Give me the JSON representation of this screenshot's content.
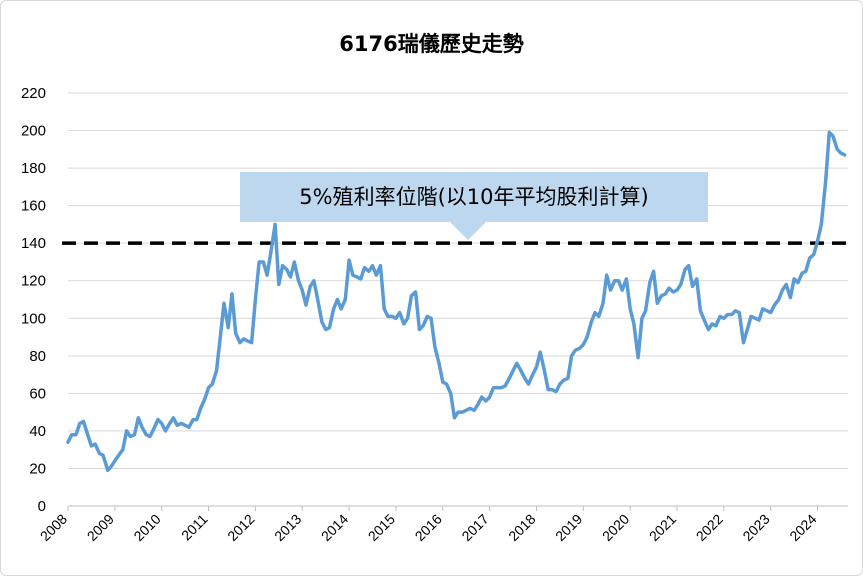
{
  "chart_data": {
    "type": "line",
    "title": "6176瑞儀歷史走勢",
    "xlabel": "",
    "ylabel": "",
    "ylim": [
      0,
      220
    ],
    "yticks": [
      0,
      20,
      40,
      60,
      80,
      100,
      120,
      140,
      160,
      180,
      200,
      220
    ],
    "xlim": [
      2008,
      2024.65
    ],
    "xticks": [
      "2008",
      "2009",
      "2010",
      "2011",
      "2012",
      "2013",
      "2014",
      "2015",
      "2016",
      "2017",
      "2018",
      "2019",
      "2020",
      "2021",
      "2022",
      "2023",
      "2024"
    ],
    "grid": true,
    "series_color": "#5b9bd5",
    "reference_line": {
      "value": 140,
      "style": "dashed",
      "color": "#000000"
    },
    "annotation": "5%殖利率位階(以10年平均股利計算)",
    "annotation_color": "#bdd7ee",
    "series": [
      {
        "points": [
          [
            2008.0,
            34
          ],
          [
            2008.08,
            38
          ],
          [
            2008.17,
            38
          ],
          [
            2008.25,
            44
          ],
          [
            2008.33,
            45
          ],
          [
            2008.42,
            38
          ],
          [
            2008.5,
            32
          ],
          [
            2008.58,
            33
          ],
          [
            2008.67,
            28
          ],
          [
            2008.75,
            27
          ],
          [
            2008.85,
            19
          ],
          [
            2008.92,
            21
          ],
          [
            2009.0,
            24
          ],
          [
            2009.08,
            27
          ],
          [
            2009.17,
            30
          ],
          [
            2009.25,
            40
          ],
          [
            2009.33,
            37
          ],
          [
            2009.42,
            38
          ],
          [
            2009.5,
            47
          ],
          [
            2009.58,
            42
          ],
          [
            2009.67,
            38
          ],
          [
            2009.75,
            37
          ],
          [
            2009.83,
            41
          ],
          [
            2009.92,
            46
          ],
          [
            2010.0,
            44
          ],
          [
            2010.08,
            40
          ],
          [
            2010.17,
            44
          ],
          [
            2010.25,
            47
          ],
          [
            2010.33,
            43
          ],
          [
            2010.42,
            44
          ],
          [
            2010.5,
            43
          ],
          [
            2010.58,
            42
          ],
          [
            2010.67,
            46
          ],
          [
            2010.75,
            46
          ],
          [
            2010.83,
            52
          ],
          [
            2010.92,
            57
          ],
          [
            2011.0,
            63
          ],
          [
            2011.08,
            65
          ],
          [
            2011.17,
            72
          ],
          [
            2011.25,
            90
          ],
          [
            2011.33,
            108
          ],
          [
            2011.42,
            95
          ],
          [
            2011.5,
            113
          ],
          [
            2011.58,
            92
          ],
          [
            2011.67,
            87
          ],
          [
            2011.75,
            89
          ],
          [
            2011.83,
            88
          ],
          [
            2011.92,
            87
          ],
          [
            2012.0,
            110
          ],
          [
            2012.08,
            130
          ],
          [
            2012.17,
            130
          ],
          [
            2012.25,
            123
          ],
          [
            2012.33,
            135
          ],
          [
            2012.42,
            150
          ],
          [
            2012.5,
            118
          ],
          [
            2012.58,
            128
          ],
          [
            2012.67,
            126
          ],
          [
            2012.75,
            122
          ],
          [
            2012.83,
            130
          ],
          [
            2012.92,
            120
          ],
          [
            2013.0,
            115
          ],
          [
            2013.08,
            107
          ],
          [
            2013.17,
            117
          ],
          [
            2013.25,
            120
          ],
          [
            2013.33,
            110
          ],
          [
            2013.42,
            98
          ],
          [
            2013.5,
            94
          ],
          [
            2013.58,
            95
          ],
          [
            2013.67,
            105
          ],
          [
            2013.75,
            110
          ],
          [
            2013.83,
            105
          ],
          [
            2013.92,
            110
          ],
          [
            2014.0,
            131
          ],
          [
            2014.08,
            123
          ],
          [
            2014.17,
            122
          ],
          [
            2014.25,
            121
          ],
          [
            2014.33,
            127
          ],
          [
            2014.42,
            125
          ],
          [
            2014.5,
            128
          ],
          [
            2014.58,
            123
          ],
          [
            2014.67,
            128
          ],
          [
            2014.75,
            105
          ],
          [
            2014.83,
            101
          ],
          [
            2014.92,
            101
          ],
          [
            2015.0,
            100
          ],
          [
            2015.08,
            103
          ],
          [
            2015.17,
            97
          ],
          [
            2015.25,
            100
          ],
          [
            2015.33,
            112
          ],
          [
            2015.42,
            114
          ],
          [
            2015.5,
            94
          ],
          [
            2015.58,
            96
          ],
          [
            2015.67,
            101
          ],
          [
            2015.75,
            100
          ],
          [
            2015.83,
            85
          ],
          [
            2015.92,
            76
          ],
          [
            2016.0,
            66
          ],
          [
            2016.08,
            65
          ],
          [
            2016.17,
            60
          ],
          [
            2016.25,
            47
          ],
          [
            2016.33,
            50
          ],
          [
            2016.42,
            50
          ],
          [
            2016.5,
            51
          ],
          [
            2016.58,
            52
          ],
          [
            2016.67,
            51
          ],
          [
            2016.75,
            54
          ],
          [
            2016.83,
            58
          ],
          [
            2016.92,
            56
          ],
          [
            2017.0,
            58
          ],
          [
            2017.08,
            63
          ],
          [
            2017.17,
            63
          ],
          [
            2017.25,
            63
          ],
          [
            2017.33,
            64
          ],
          [
            2017.42,
            68
          ],
          [
            2017.5,
            72
          ],
          [
            2017.58,
            76
          ],
          [
            2017.67,
            72
          ],
          [
            2017.75,
            68
          ],
          [
            2017.83,
            65
          ],
          [
            2017.92,
            70
          ],
          [
            2018.0,
            74
          ],
          [
            2018.08,
            82
          ],
          [
            2018.17,
            72
          ],
          [
            2018.25,
            62
          ],
          [
            2018.33,
            62
          ],
          [
            2018.42,
            61
          ],
          [
            2018.5,
            65
          ],
          [
            2018.58,
            67
          ],
          [
            2018.67,
            68
          ],
          [
            2018.75,
            80
          ],
          [
            2018.83,
            83
          ],
          [
            2018.92,
            84
          ],
          [
            2019.0,
            86
          ],
          [
            2019.08,
            90
          ],
          [
            2019.17,
            98
          ],
          [
            2019.25,
            103
          ],
          [
            2019.33,
            101
          ],
          [
            2019.42,
            108
          ],
          [
            2019.5,
            123
          ],
          [
            2019.58,
            115
          ],
          [
            2019.67,
            120
          ],
          [
            2019.75,
            120
          ],
          [
            2019.83,
            115
          ],
          [
            2019.92,
            121
          ],
          [
            2020.0,
            105
          ],
          [
            2020.08,
            97
          ],
          [
            2020.17,
            79
          ],
          [
            2020.25,
            100
          ],
          [
            2020.33,
            104
          ],
          [
            2020.42,
            119
          ],
          [
            2020.5,
            125
          ],
          [
            2020.58,
            108
          ],
          [
            2020.67,
            112
          ],
          [
            2020.75,
            113
          ],
          [
            2020.83,
            116
          ],
          [
            2020.92,
            114
          ],
          [
            2021.0,
            115
          ],
          [
            2021.08,
            118
          ],
          [
            2021.17,
            126
          ],
          [
            2021.25,
            128
          ],
          [
            2021.33,
            117
          ],
          [
            2021.42,
            121
          ],
          [
            2021.5,
            104
          ],
          [
            2021.58,
            99
          ],
          [
            2021.67,
            94
          ],
          [
            2021.75,
            97
          ],
          [
            2021.83,
            96
          ],
          [
            2021.92,
            101
          ],
          [
            2022.0,
            100
          ],
          [
            2022.08,
            102
          ],
          [
            2022.17,
            102
          ],
          [
            2022.25,
            104
          ],
          [
            2022.33,
            103
          ],
          [
            2022.42,
            87
          ],
          [
            2022.5,
            94
          ],
          [
            2022.58,
            101
          ],
          [
            2022.67,
            100
          ],
          [
            2022.75,
            99
          ],
          [
            2022.83,
            105
          ],
          [
            2022.92,
            104
          ],
          [
            2023.0,
            103
          ],
          [
            2023.08,
            107
          ],
          [
            2023.17,
            110
          ],
          [
            2023.25,
            115
          ],
          [
            2023.33,
            118
          ],
          [
            2023.42,
            111
          ],
          [
            2023.5,
            121
          ],
          [
            2023.58,
            119
          ],
          [
            2023.67,
            124
          ],
          [
            2023.75,
            125
          ],
          [
            2023.83,
            132
          ],
          [
            2023.92,
            134
          ],
          [
            2024.0,
            141
          ],
          [
            2024.08,
            150
          ],
          [
            2024.17,
            172
          ],
          [
            2024.25,
            199
          ],
          [
            2024.33,
            197
          ],
          [
            2024.42,
            190
          ],
          [
            2024.5,
            188
          ],
          [
            2024.58,
            187
          ]
        ]
      }
    ]
  }
}
